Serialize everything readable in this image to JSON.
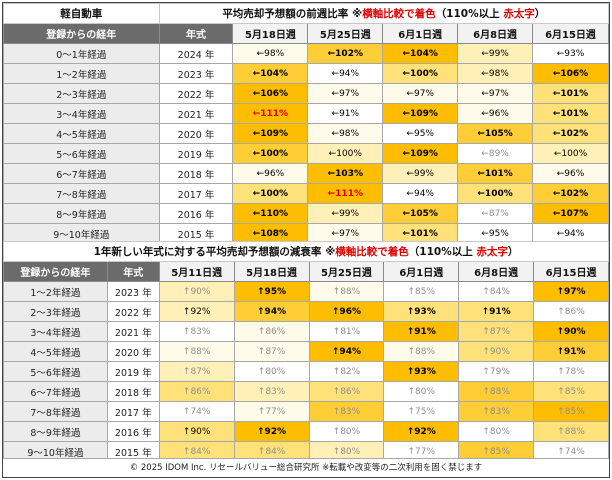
{
  "table1": {
    "label": "軽自動車",
    "title_main": "平均売却予想額の前週比率",
    "title_note_pre": "※",
    "title_note_red1": "横軸比較で着色",
    "title_note_mid": "（110%以上 ",
    "title_note_red2": "赤太字",
    "title_note_end": "）",
    "col_elapsed": "登録からの経年",
    "col_year": "年式",
    "dates": [
      "5月18日週",
      "5月25日週",
      "6月1日週",
      "6月8日週",
      "6月15日週"
    ],
    "rows": [
      {
        "elapsed": "0～1年経過",
        "year": "2024 年",
        "cells": [
          {
            "v": "←98%",
            "lv": 1,
            "s": "n"
          },
          {
            "v": "←102%",
            "lv": 4,
            "s": "b"
          },
          {
            "v": "←104%",
            "lv": 5,
            "s": "b"
          },
          {
            "v": "←99%",
            "lv": 2,
            "s": "n"
          },
          {
            "v": "←93%",
            "lv": 0,
            "s": "n"
          }
        ]
      },
      {
        "elapsed": "1～2年経過",
        "year": "2023 年",
        "cells": [
          {
            "v": "←104%",
            "lv": 4,
            "s": "b"
          },
          {
            "v": "←94%",
            "lv": 0,
            "s": "n"
          },
          {
            "v": "←100%",
            "lv": 3,
            "s": "b"
          },
          {
            "v": "←98%",
            "lv": 2,
            "s": "n"
          },
          {
            "v": "←106%",
            "lv": 5,
            "s": "b"
          }
        ]
      },
      {
        "elapsed": "2～3年経過",
        "year": "2022 年",
        "cells": [
          {
            "v": "←106%",
            "lv": 5,
            "s": "b"
          },
          {
            "v": "←97%",
            "lv": 1,
            "s": "n"
          },
          {
            "v": "←97%",
            "lv": 1,
            "s": "n"
          },
          {
            "v": "←97%",
            "lv": 1,
            "s": "n"
          },
          {
            "v": "←101%",
            "lv": 3,
            "s": "b"
          }
        ]
      },
      {
        "elapsed": "3～4年経過",
        "year": "2021 年",
        "cells": [
          {
            "v": "←111%",
            "lv": 5,
            "s": "r"
          },
          {
            "v": "←91%",
            "lv": 0,
            "s": "n"
          },
          {
            "v": "←109%",
            "lv": 5,
            "s": "b"
          },
          {
            "v": "←96%",
            "lv": 1,
            "s": "n"
          },
          {
            "v": "←101%",
            "lv": 3,
            "s": "b"
          }
        ]
      },
      {
        "elapsed": "4～5年経過",
        "year": "2020 年",
        "cells": [
          {
            "v": "←109%",
            "lv": 5,
            "s": "b"
          },
          {
            "v": "←98%",
            "lv": 1,
            "s": "n"
          },
          {
            "v": "←95%",
            "lv": 0,
            "s": "n"
          },
          {
            "v": "←105%",
            "lv": 4,
            "s": "b"
          },
          {
            "v": "←102%",
            "lv": 3,
            "s": "b"
          }
        ]
      },
      {
        "elapsed": "5～6年経過",
        "year": "2019 年",
        "cells": [
          {
            "v": "←100%",
            "lv": 4,
            "s": "b"
          },
          {
            "v": "←100%",
            "lv": 2,
            "s": "n"
          },
          {
            "v": "←109%",
            "lv": 5,
            "s": "b"
          },
          {
            "v": "←89%",
            "lv": 0,
            "s": "m"
          },
          {
            "v": "←100%",
            "lv": 2,
            "s": "n"
          }
        ]
      },
      {
        "elapsed": "6～7年経過",
        "year": "2018 年",
        "cells": [
          {
            "v": "←96%",
            "lv": 1,
            "s": "n"
          },
          {
            "v": "←103%",
            "lv": 5,
            "s": "b"
          },
          {
            "v": "←99%",
            "lv": 2,
            "s": "n"
          },
          {
            "v": "←101%",
            "lv": 4,
            "s": "b"
          },
          {
            "v": "←96%",
            "lv": 1,
            "s": "n"
          }
        ]
      },
      {
        "elapsed": "7～8年経過",
        "year": "2017 年",
        "cells": [
          {
            "v": "←100%",
            "lv": 3,
            "s": "b"
          },
          {
            "v": "←111%",
            "lv": 5,
            "s": "r"
          },
          {
            "v": "←94%",
            "lv": 0,
            "s": "n"
          },
          {
            "v": "←100%",
            "lv": 3,
            "s": "b"
          },
          {
            "v": "←102%",
            "lv": 4,
            "s": "b"
          }
        ]
      },
      {
        "elapsed": "8～9年経過",
        "year": "2016 年",
        "cells": [
          {
            "v": "←110%",
            "lv": 5,
            "s": "b"
          },
          {
            "v": "←99%",
            "lv": 2,
            "s": "n"
          },
          {
            "v": "←105%",
            "lv": 4,
            "s": "b"
          },
          {
            "v": "←87%",
            "lv": 0,
            "s": "m"
          },
          {
            "v": "←107%",
            "lv": 5,
            "s": "b"
          }
        ]
      },
      {
        "elapsed": "9～10年経過",
        "year": "2015 年",
        "cells": [
          {
            "v": "←108%",
            "lv": 5,
            "s": "b"
          },
          {
            "v": "←97%",
            "lv": 1,
            "s": "n"
          },
          {
            "v": "←101%",
            "lv": 3,
            "s": "b"
          },
          {
            "v": "←95%",
            "lv": 0,
            "s": "n"
          },
          {
            "v": "←94%",
            "lv": 0,
            "s": "n"
          }
        ]
      }
    ]
  },
  "table2": {
    "title_main": "1年新しい年式に対する平均売却予想額の減衰率",
    "title_note_pre": "※",
    "title_note_red1": "横軸比較で着色",
    "title_note_mid": "（110%以上 ",
    "title_note_red2": "赤太字",
    "title_note_end": "）",
    "col_elapsed": "登録からの経年",
    "col_year": "年式",
    "dates": [
      "5月11日週",
      "5月18日週",
      "5月25日週",
      "6月1日週",
      "6月8日週",
      "6月15日週"
    ],
    "rows": [
      {
        "elapsed": "1～2年経過",
        "year": "2023 年",
        "cells": [
          {
            "v": "↑90%",
            "lv": 2,
            "s": "m"
          },
          {
            "v": "↑95%",
            "lv": 5,
            "s": "b"
          },
          {
            "v": "↑88%",
            "lv": 1,
            "s": "m"
          },
          {
            "v": "↑85%",
            "lv": 0,
            "s": "m"
          },
          {
            "v": "↑84%",
            "lv": 0,
            "s": "m"
          },
          {
            "v": "↑97%",
            "lv": 5,
            "s": "b"
          }
        ]
      },
      {
        "elapsed": "2～3年経過",
        "year": "2022 年",
        "cells": [
          {
            "v": "↑92%",
            "lv": 2,
            "s": "n"
          },
          {
            "v": "↑94%",
            "lv": 4,
            "s": "b"
          },
          {
            "v": "↑96%",
            "lv": 5,
            "s": "b"
          },
          {
            "v": "↑93%",
            "lv": 3,
            "s": "b"
          },
          {
            "v": "↑91%",
            "lv": 3,
            "s": "b"
          },
          {
            "v": "↑86%",
            "lv": 0,
            "s": "m"
          }
        ]
      },
      {
        "elapsed": "3～4年経過",
        "year": "2021 年",
        "cells": [
          {
            "v": "↑83%",
            "lv": 0,
            "s": "m"
          },
          {
            "v": "↑86%",
            "lv": 1,
            "s": "m"
          },
          {
            "v": "↑81%",
            "lv": 0,
            "s": "m"
          },
          {
            "v": "↑91%",
            "lv": 5,
            "s": "b"
          },
          {
            "v": "↑87%",
            "lv": 3,
            "s": "m"
          },
          {
            "v": "↑90%",
            "lv": 5,
            "s": "b"
          }
        ]
      },
      {
        "elapsed": "4～5年経過",
        "year": "2020 年",
        "cells": [
          {
            "v": "↑88%",
            "lv": 1,
            "s": "m"
          },
          {
            "v": "↑87%",
            "lv": 1,
            "s": "m"
          },
          {
            "v": "↑94%",
            "lv": 5,
            "s": "b"
          },
          {
            "v": "↑88%",
            "lv": 1,
            "s": "m"
          },
          {
            "v": "↑90%",
            "lv": 3,
            "s": "m"
          },
          {
            "v": "↑91%",
            "lv": 4,
            "s": "b"
          }
        ]
      },
      {
        "elapsed": "5～6年経過",
        "year": "2019 年",
        "cells": [
          {
            "v": "↑87%",
            "lv": 2,
            "s": "m"
          },
          {
            "v": "↑80%",
            "lv": 0,
            "s": "m"
          },
          {
            "v": "↑82%",
            "lv": 0,
            "s": "m"
          },
          {
            "v": "↑93%",
            "lv": 5,
            "s": "b"
          },
          {
            "v": "↑79%",
            "lv": 0,
            "s": "m"
          },
          {
            "v": "↑78%",
            "lv": 0,
            "s": "m"
          }
        ]
      },
      {
        "elapsed": "6～7年経過",
        "year": "2018 年",
        "cells": [
          {
            "v": "↑86%",
            "lv": 3,
            "s": "m"
          },
          {
            "v": "↑83%",
            "lv": 2,
            "s": "m"
          },
          {
            "v": "↑86%",
            "lv": 3,
            "s": "m"
          },
          {
            "v": "↑80%",
            "lv": 0,
            "s": "m"
          },
          {
            "v": "↑88%",
            "lv": 4,
            "s": "m"
          },
          {
            "v": "↑85%",
            "lv": 3,
            "s": "m"
          }
        ]
      },
      {
        "elapsed": "7～8年経過",
        "year": "2017 年",
        "cells": [
          {
            "v": "↑74%",
            "lv": 0,
            "s": "m"
          },
          {
            "v": "↑77%",
            "lv": 1,
            "s": "m"
          },
          {
            "v": "↑83%",
            "lv": 4,
            "s": "m"
          },
          {
            "v": "↑75%",
            "lv": 0,
            "s": "m"
          },
          {
            "v": "↑83%",
            "lv": 4,
            "s": "m"
          },
          {
            "v": "↑85%",
            "lv": 5,
            "s": "m"
          }
        ]
      },
      {
        "elapsed": "8～9年経過",
        "year": "2016 年",
        "cells": [
          {
            "v": "↑90%",
            "lv": 3,
            "s": "n"
          },
          {
            "v": "↑92%",
            "lv": 5,
            "s": "b"
          },
          {
            "v": "↑80%",
            "lv": 0,
            "s": "m"
          },
          {
            "v": "↑92%",
            "lv": 5,
            "s": "b"
          },
          {
            "v": "↑80%",
            "lv": 0,
            "s": "m"
          },
          {
            "v": "↑88%",
            "lv": 3,
            "s": "m"
          }
        ]
      },
      {
        "elapsed": "9～10年経過",
        "year": "2015 年",
        "cells": [
          {
            "v": "↑84%",
            "lv": 3,
            "s": "m"
          },
          {
            "v": "↑84%",
            "lv": 3,
            "s": "m"
          },
          {
            "v": "↑80%",
            "lv": 2,
            "s": "m"
          },
          {
            "v": "↑77%",
            "lv": 0,
            "s": "m"
          },
          {
            "v": "↑85%",
            "lv": 4,
            "s": "m"
          },
          {
            "v": "↑74%",
            "lv": 0,
            "s": "m"
          }
        ]
      }
    ]
  },
  "footer": "© 2025 IDOM Inc. リセールバリュー総合研究所 ※転載や改変等の二次利用を固く禁じます",
  "colors": {
    "shade_max": "#ffbd00",
    "shade_min": "#ffffff",
    "red_text": "#e00000",
    "header_gray": "#6b6b6b"
  }
}
